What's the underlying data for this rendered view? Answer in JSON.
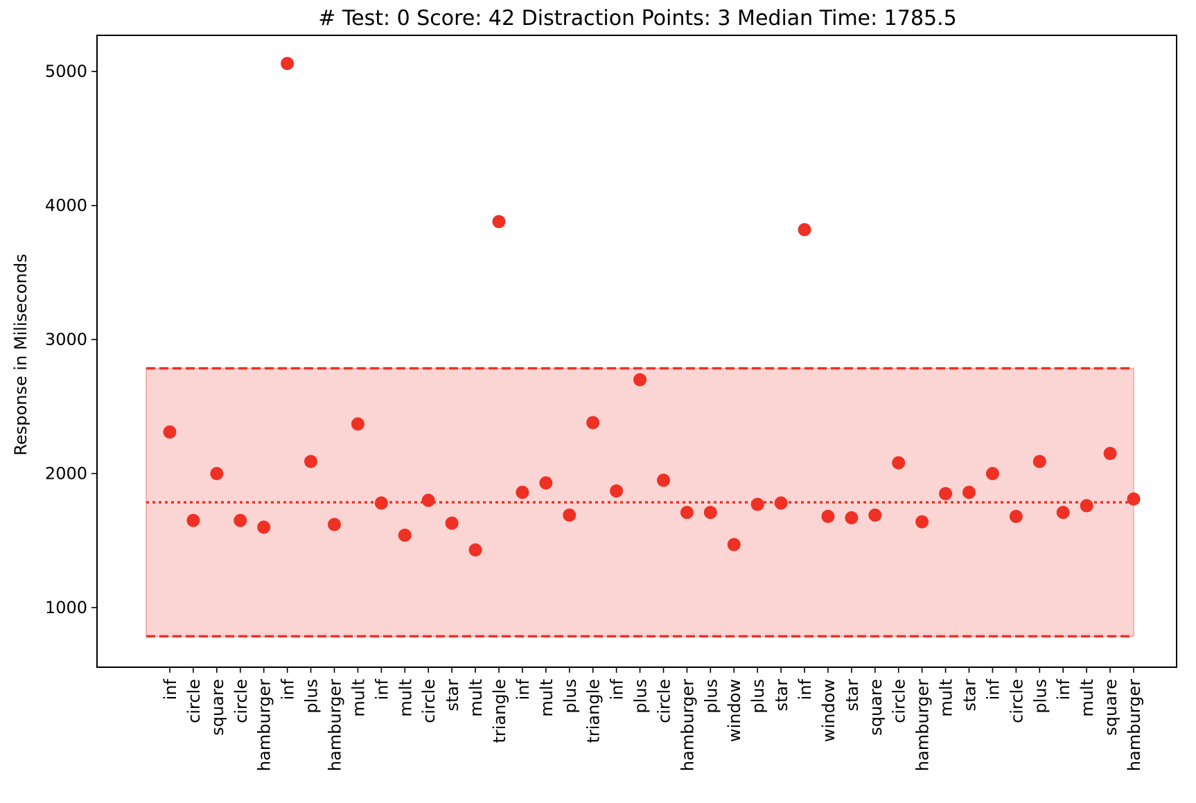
{
  "chart_data": {
    "type": "scatter",
    "title": "# Test: 0 Score: 42 Distraction Points: 3 Median Time: 1785.5",
    "xlabel": "",
    "ylabel": "Response in Miliseconds",
    "ylim": [
      555,
      5270
    ],
    "yticks": [
      "1000",
      "2000",
      "3000",
      "4000",
      "5000"
    ],
    "grid": false,
    "legend": "none",
    "colors": {
      "point": "#ee3124",
      "band_fill": "#fbd5d3",
      "band_edge": "#f4a09a",
      "line": "#ee3124"
    },
    "median": 1785.5,
    "band": {
      "lower": 785.5,
      "upper": 2785.5
    },
    "categories": [
      "inf",
      "circle",
      "square",
      "circle",
      "hamburger",
      "inf",
      "plus",
      "hamburger",
      "mult",
      "inf",
      "mult",
      "circle",
      "star",
      "mult",
      "triangle",
      "inf",
      "mult",
      "plus",
      "triangle",
      "inf",
      "plus",
      "circle",
      "hamburger",
      "plus",
      "window",
      "plus",
      "star",
      "inf",
      "window",
      "star",
      "square",
      "circle",
      "hamburger",
      "mult",
      "star",
      "inf",
      "circle",
      "plus",
      "inf",
      "mult",
      "square",
      "hamburger"
    ],
    "values": [
      2310,
      1650,
      2000,
      1650,
      1600,
      5060,
      2090,
      1620,
      2370,
      1780,
      1540,
      1800,
      1630,
      1430,
      3880,
      1860,
      1930,
      1690,
      2380,
      1870,
      2700,
      1950,
      1710,
      1710,
      1470,
      1770,
      1780,
      3820,
      1680,
      1670,
      1690,
      2080,
      1640,
      1850,
      1860,
      2000,
      1680,
      2090,
      1710,
      1760,
      2150,
      1810
    ]
  }
}
